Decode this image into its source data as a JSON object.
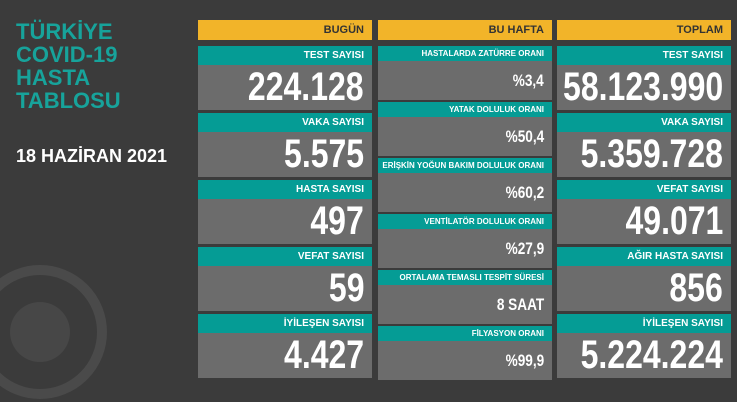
{
  "header": {
    "title_lines": [
      "TÜRKİYE",
      "COVID-19",
      "HASTA",
      "TABLOSU"
    ],
    "date": "18 HAZİRAN 2021"
  },
  "columns": [
    {
      "title": "BUGÜN",
      "cells": [
        {
          "label": "TEST SAYISI",
          "value": "224.128"
        },
        {
          "label": "VAKA SAYISI",
          "value": "5.575"
        },
        {
          "label": "HASTA SAYISI",
          "value": "497"
        },
        {
          "label": "VEFAT SAYISI",
          "value": "59"
        },
        {
          "label": "İYİLEŞEN SAYISI",
          "value": "4.427"
        }
      ]
    },
    {
      "title": "BU HAFTA",
      "cells": [
        {
          "label": "HASTALARDA ZATÜRRE ORANI",
          "value": "%3,4"
        },
        {
          "label": "YATAK DOLULUK ORANI",
          "value": "%50,4"
        },
        {
          "label": "ERİŞKİN YOĞUN BAKIM DOLULUK ORANI",
          "value": "%60,2"
        },
        {
          "label": "VENTİLATÖR DOLULUK ORANI",
          "value": "%27,9"
        },
        {
          "label": "ORTALAMA TEMASLI TESPİT SÜRESİ",
          "value": "8 SAAT"
        },
        {
          "label": "FİLYASYON ORANI",
          "value": "%99,9"
        }
      ]
    },
    {
      "title": "TOPLAM",
      "cells": [
        {
          "label": "TEST SAYISI",
          "value": "58.123.990"
        },
        {
          "label": "VAKA SAYISI",
          "value": "5.359.728"
        },
        {
          "label": "VEFAT SAYISI",
          "value": "49.071"
        },
        {
          "label": "AĞIR HASTA SAYISI",
          "value": "856"
        },
        {
          "label": "İYİLEŞEN SAYISI",
          "value": "5.224.224"
        }
      ]
    }
  ]
}
